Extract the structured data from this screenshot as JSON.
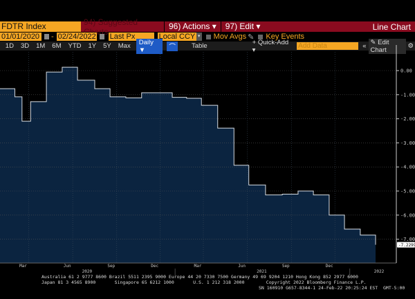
{
  "header": {
    "ticker": "FDTR Index",
    "suggested": "94) Suggested Charts",
    "actions": "96) Actions ▾",
    "edit": "97) Edit ▾",
    "chart_type": "Line Chart"
  },
  "controls": {
    "start_date": "01/01/2020",
    "dash": "-",
    "end_date": "02/24/2022",
    "field": "Last Px",
    "currency": "Local CCY",
    "mov_avgs": "Mov Avgs",
    "key_events": "Key Events"
  },
  "toolbar": {
    "ranges": [
      "1D",
      "3D",
      "1M",
      "6M",
      "YTD",
      "1Y",
      "5Y",
      "Max"
    ],
    "frequency": "Daily ▼",
    "table": "Table",
    "quick_add": "+ Quick-Add ▾",
    "add_data_placeholder": "Add Data",
    "collapse": "«",
    "edit_chart": "✎ Edit Chart",
    "settings": "⚙"
  },
  "colors": {
    "fill": "#0b2440",
    "line": "#d8dde3",
    "orange": "#f5a623",
    "red": "#8a0b1f"
  },
  "chart_data": {
    "type": "area",
    "step": true,
    "xlim": [
      "2020-01-01",
      "2022-02-24"
    ],
    "ylim": [
      -7.6,
      0.8
    ],
    "grid": true,
    "yticks": [
      "0.00",
      "-1.00",
      "-2.00",
      "-3.00",
      "-4.00",
      "-5.00",
      "-6.00",
      "-7.00"
    ],
    "xticks": [
      "Mar",
      "Jun",
      "Sep",
      "Dec",
      "Mar",
      "Jun",
      "Sep",
      "Dec"
    ],
    "years": [
      "2020",
      "2021",
      "2022"
    ],
    "last_value_label": "-7.2299",
    "points": [
      [
        "2020-01-01",
        -0.75
      ],
      [
        "2020-02-01",
        -1.09
      ],
      [
        "2020-02-16",
        -2.1
      ],
      [
        "2020-03-05",
        -1.29
      ],
      [
        "2020-04-07",
        -0.06
      ],
      [
        "2020-05-10",
        0.14
      ],
      [
        "2020-06-11",
        -0.4
      ],
      [
        "2020-07-17",
        -0.75
      ],
      [
        "2020-08-18",
        -1.09
      ],
      [
        "2020-09-20",
        -1.13
      ],
      [
        "2020-10-23",
        -0.92
      ],
      [
        "2020-12-26",
        -1.11
      ],
      [
        "2021-01-25",
        -1.15
      ],
      [
        "2021-02-25",
        -1.44
      ],
      [
        "2021-03-31",
        -2.39
      ],
      [
        "2021-05-04",
        -3.93
      ],
      [
        "2021-06-04",
        -4.75
      ],
      [
        "2021-07-09",
        -5.16
      ],
      [
        "2021-08-13",
        -5.13
      ],
      [
        "2021-09-15",
        -5.0
      ],
      [
        "2021-10-17",
        -5.16
      ],
      [
        "2021-11-19",
        -6.0
      ],
      [
        "2021-12-21",
        -6.58
      ],
      [
        "2022-01-23",
        -6.83
      ],
      [
        "2022-02-24",
        -7.23
      ]
    ]
  },
  "footer": {
    "line1": "Australia 61 2 9777 8600 Brazil 5511 2395 9000 Europe 44 20 7330 7500 Germany 49 69 9204 1210 Hong Kong 852 2977 6000",
    "line2": "Japan 81 3 4565 8900       Singapore 65 6212 1000       U.S. 1 212 318 2000        Copyright 2022 Bloomberg Finance L.P.",
    "line3": "SN 160910 G657-8344-1 24-Feb-22 20:25:24 EST  GMT-5:00"
  }
}
